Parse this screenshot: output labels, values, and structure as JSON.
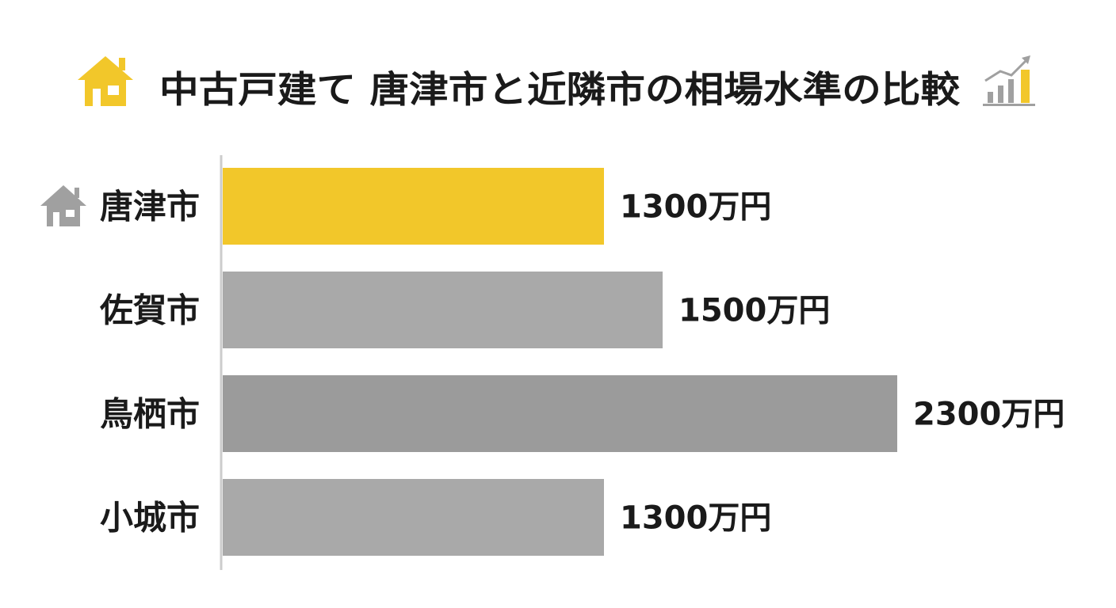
{
  "header": {
    "title": "中古戸建て 唐津市と近隣市の相場水準の比較",
    "left_icon": "house-icon",
    "right_icon": "bar-chart-trend-icon"
  },
  "colors": {
    "highlight": "#f2c72a",
    "bar": "#a9a9a9",
    "bar_max": "#9b9b9b",
    "axis": "#cccccc",
    "text": "#1a1a1a",
    "icon_gray": "#a0a0a0"
  },
  "chart_data": {
    "type": "bar",
    "orientation": "horizontal",
    "title": "中古戸建て 唐津市と近隣市の相場水準の比較",
    "categories": [
      "唐津市",
      "佐賀市",
      "鳥栖市",
      "小城市"
    ],
    "values": [
      1300,
      1500,
      2300,
      1300
    ],
    "value_labels": [
      "1300万円",
      "1500万円",
      "2300万円",
      "1300万円"
    ],
    "unit": "万円",
    "highlighted_category": "唐津市",
    "xlim": [
      0,
      2300
    ],
    "grid": false,
    "legend": "none"
  }
}
